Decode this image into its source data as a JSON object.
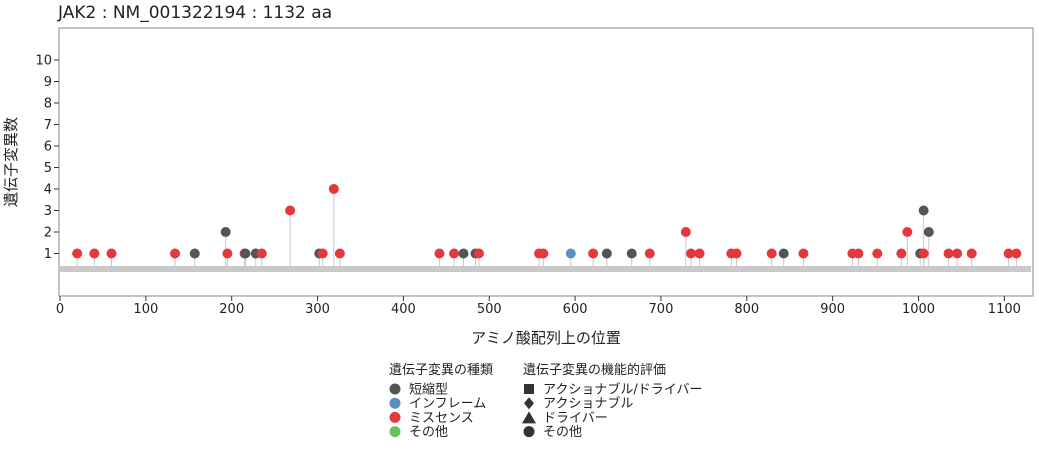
{
  "chart_data": {
    "type": "lollipop",
    "title": "JAK2 : NM_001322194 : 1132 aa",
    "xlabel": "アミノ酸配列上の位置",
    "ylabel": "遺伝子変異数",
    "xlim": [
      0,
      1132
    ],
    "ylim": [
      0,
      11.5
    ],
    "xticks": [
      0,
      100,
      200,
      300,
      400,
      500,
      600,
      700,
      800,
      900,
      1000,
      1100
    ],
    "yticks": [
      1,
      2,
      3,
      4,
      5,
      6,
      7,
      8,
      9,
      10
    ],
    "protein_length": 1132,
    "grid": false,
    "legend_placement": "bottom",
    "legends": [
      {
        "title": "遺伝子変異の種類",
        "items": [
          {
            "label": "短縮型",
            "color": "#555555",
            "shape": "circle"
          },
          {
            "label": "インフレーム",
            "color": "#5b8fc4",
            "shape": "circle"
          },
          {
            "label": "ミスセンス",
            "color": "#e4383c",
            "shape": "circle"
          },
          {
            "label": "その他",
            "color": "#6bbf5f",
            "shape": "circle"
          }
        ]
      },
      {
        "title": "遺伝子変異の機能的評価",
        "items": [
          {
            "label": "アクショナブル/ドライバー",
            "color": "#333333",
            "shape": "square"
          },
          {
            "label": "アクショナブル",
            "color": "#333333",
            "shape": "diamond"
          },
          {
            "label": "ドライバー",
            "color": "#333333",
            "shape": "triangle"
          },
          {
            "label": "その他",
            "color": "#333333",
            "shape": "circle"
          }
        ]
      }
    ],
    "points": [
      {
        "x": 20,
        "y": 1,
        "type": "missense"
      },
      {
        "x": 40,
        "y": 1,
        "type": "missense"
      },
      {
        "x": 60,
        "y": 1,
        "type": "missense"
      },
      {
        "x": 134,
        "y": 1,
        "type": "missense"
      },
      {
        "x": 157,
        "y": 1,
        "type": "truncating"
      },
      {
        "x": 193,
        "y": 2,
        "type": "truncating"
      },
      {
        "x": 195,
        "y": 1,
        "type": "missense"
      },
      {
        "x": 215,
        "y": 1,
        "type": "missense"
      },
      {
        "x": 216,
        "y": 1,
        "type": "truncating"
      },
      {
        "x": 228,
        "y": 1,
        "type": "truncating"
      },
      {
        "x": 235,
        "y": 1,
        "type": "missense"
      },
      {
        "x": 268,
        "y": 3,
        "type": "missense"
      },
      {
        "x": 302,
        "y": 1,
        "type": "truncating"
      },
      {
        "x": 306,
        "y": 1,
        "type": "missense"
      },
      {
        "x": 319,
        "y": 4,
        "type": "missense"
      },
      {
        "x": 326,
        "y": 1,
        "type": "missense"
      },
      {
        "x": 442,
        "y": 1,
        "type": "missense"
      },
      {
        "x": 459,
        "y": 1,
        "type": "missense"
      },
      {
        "x": 470,
        "y": 1,
        "type": "truncating"
      },
      {
        "x": 484,
        "y": 1,
        "type": "truncating"
      },
      {
        "x": 488,
        "y": 1,
        "type": "missense"
      },
      {
        "x": 558,
        "y": 1,
        "type": "missense"
      },
      {
        "x": 563,
        "y": 1,
        "type": "missense"
      },
      {
        "x": 595,
        "y": 1,
        "type": "inframe"
      },
      {
        "x": 621,
        "y": 1,
        "type": "missense"
      },
      {
        "x": 637,
        "y": 1,
        "type": "truncating"
      },
      {
        "x": 666,
        "y": 1,
        "type": "truncating"
      },
      {
        "x": 687,
        "y": 1,
        "type": "missense"
      },
      {
        "x": 729,
        "y": 2,
        "type": "missense"
      },
      {
        "x": 735,
        "y": 1,
        "type": "missense"
      },
      {
        "x": 745,
        "y": 1,
        "type": "missense"
      },
      {
        "x": 782,
        "y": 1,
        "type": "missense"
      },
      {
        "x": 788,
        "y": 1,
        "type": "missense"
      },
      {
        "x": 829,
        "y": 1,
        "type": "missense"
      },
      {
        "x": 843,
        "y": 1,
        "type": "truncating"
      },
      {
        "x": 866,
        "y": 1,
        "type": "missense"
      },
      {
        "x": 923,
        "y": 1,
        "type": "missense"
      },
      {
        "x": 930,
        "y": 1,
        "type": "missense"
      },
      {
        "x": 952,
        "y": 1,
        "type": "missense"
      },
      {
        "x": 980,
        "y": 1,
        "type": "missense"
      },
      {
        "x": 987,
        "y": 2,
        "type": "missense"
      },
      {
        "x": 1002,
        "y": 1,
        "type": "truncating"
      },
      {
        "x": 1006,
        "y": 3,
        "type": "truncating"
      },
      {
        "x": 1006,
        "y": 1,
        "type": "missense"
      },
      {
        "x": 1012,
        "y": 2,
        "type": "truncating"
      },
      {
        "x": 1035,
        "y": 1,
        "type": "missense"
      },
      {
        "x": 1045,
        "y": 1,
        "type": "missense"
      },
      {
        "x": 1062,
        "y": 1,
        "type": "missense"
      },
      {
        "x": 1105,
        "y": 1,
        "type": "missense"
      },
      {
        "x": 1114,
        "y": 1,
        "type": "missense"
      }
    ]
  },
  "colors": {
    "truncating": "#555555",
    "inframe": "#5b8fc4",
    "missense": "#e4383c",
    "other": "#6bbf5f",
    "stem": "#c8c8c8",
    "protein_bar": "#c9c9c9",
    "frame": "#888888"
  }
}
